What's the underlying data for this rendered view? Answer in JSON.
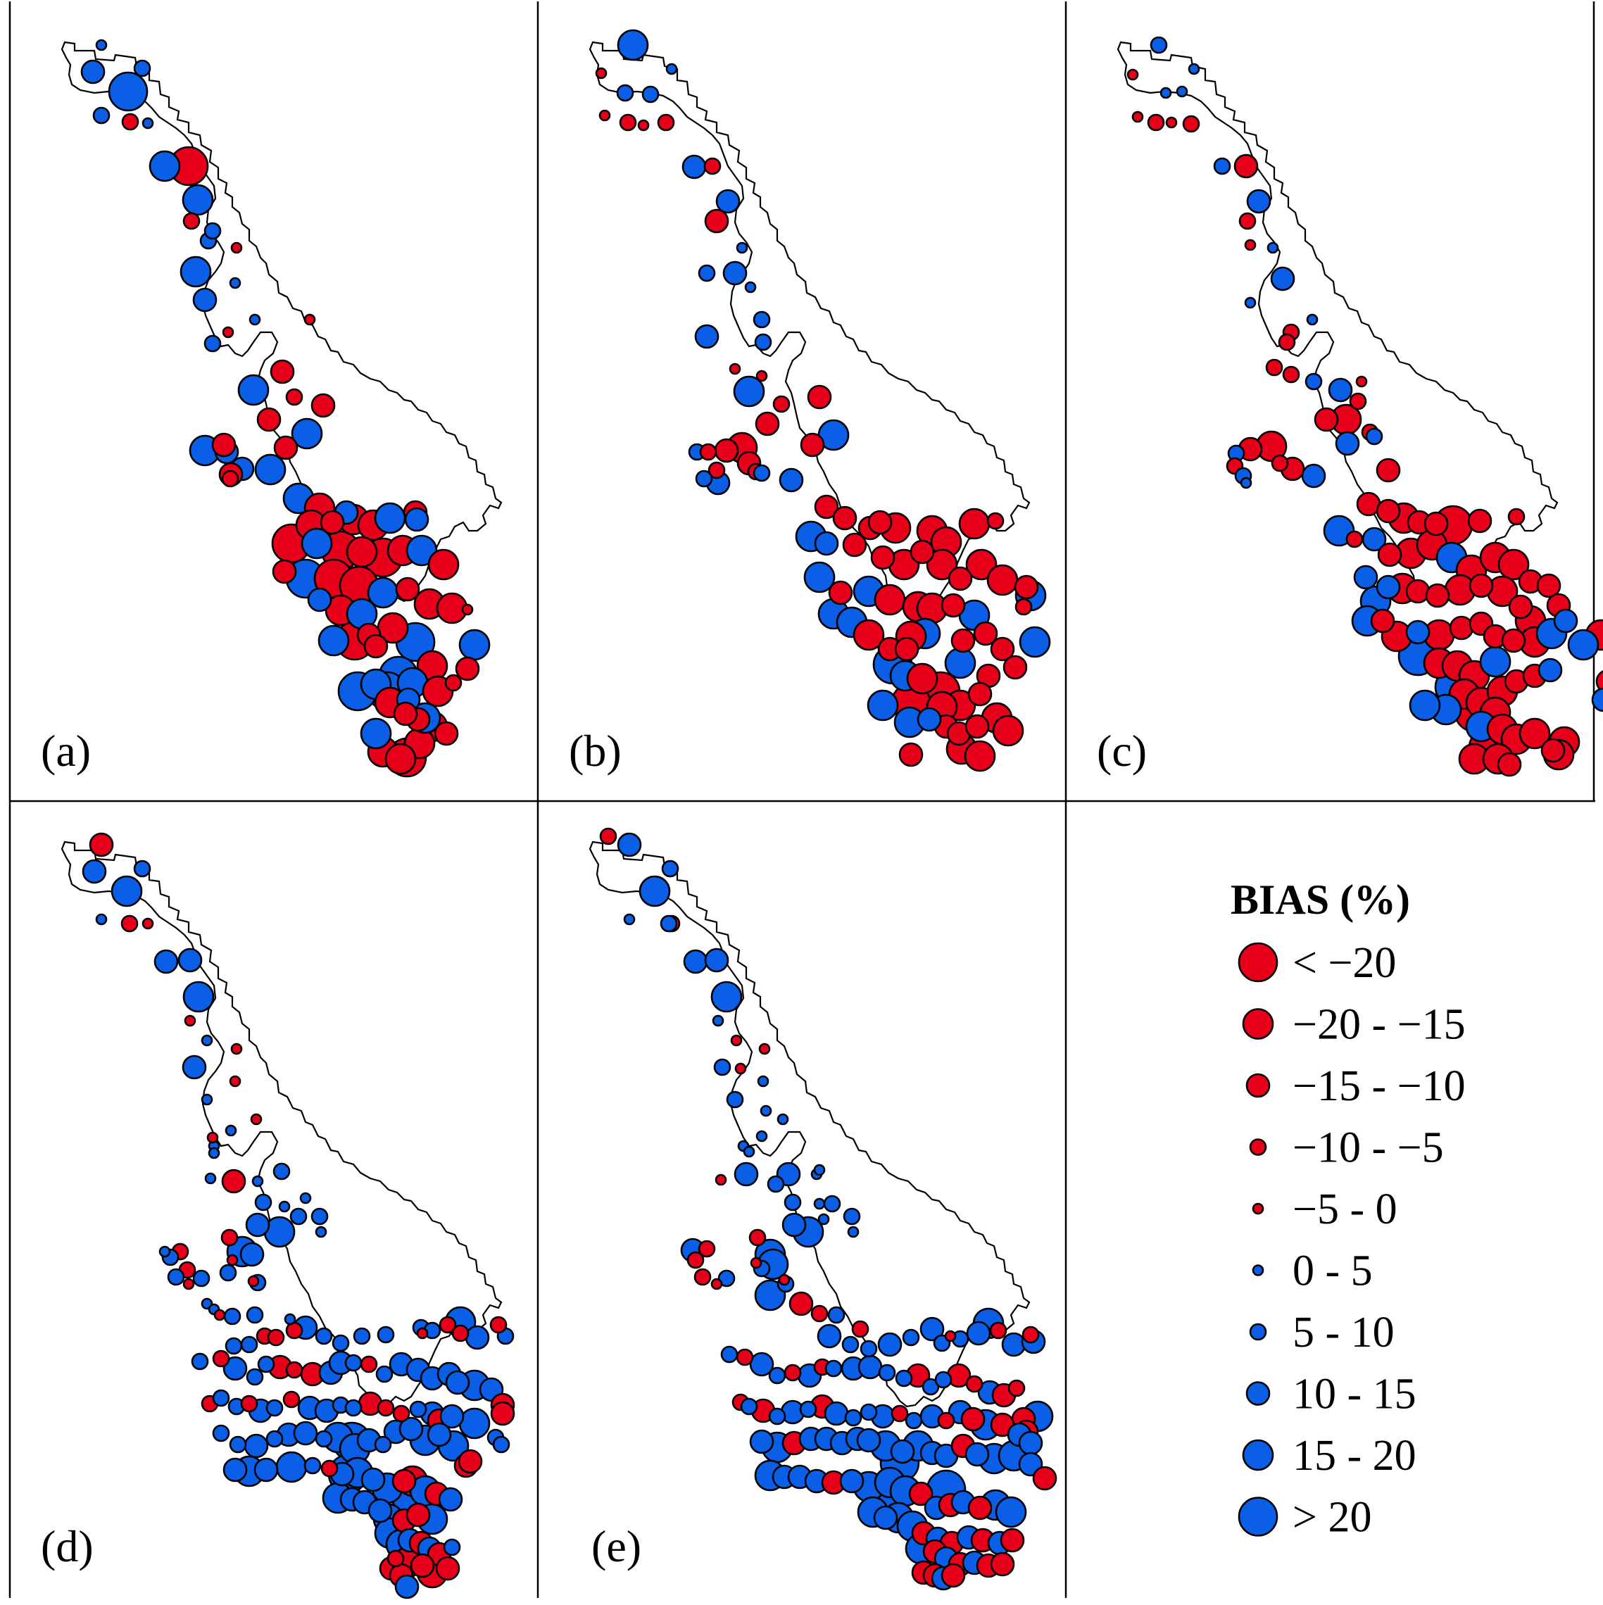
{
  "figure": {
    "panels": [
      {
        "id": "a",
        "label": "(a)"
      },
      {
        "id": "b",
        "label": "(b)"
      },
      {
        "id": "c",
        "label": "(c)"
      },
      {
        "id": "d",
        "label": "(d)"
      },
      {
        "id": "e",
        "label": "(e)"
      }
    ],
    "colors": {
      "negative": "#e8001a",
      "positive": "#0a5fe6",
      "outline": "#000000"
    },
    "legend": {
      "title": "BIAS (%)",
      "classes": [
        {
          "label": "< −20",
          "sign": "neg",
          "size_class": 5
        },
        {
          "label": "−20 - −15",
          "sign": "neg",
          "size_class": 4
        },
        {
          "label": "−15 - −10",
          "sign": "neg",
          "size_class": 3
        },
        {
          "label": "−10 - −5",
          "sign": "neg",
          "size_class": 2
        },
        {
          "label": "−5 - 0",
          "sign": "neg",
          "size_class": 1
        },
        {
          "label": "0 - 5",
          "sign": "pos",
          "size_class": 1
        },
        {
          "label": "5 - 10",
          "sign": "pos",
          "size_class": 2
        },
        {
          "label": "10 - 15",
          "sign": "pos",
          "size_class": 3
        },
        {
          "label": "15 - 20",
          "sign": "pos",
          "size_class": 4
        },
        {
          "label": "> 20",
          "sign": "pos",
          "size_class": 5
        }
      ]
    }
  }
}
